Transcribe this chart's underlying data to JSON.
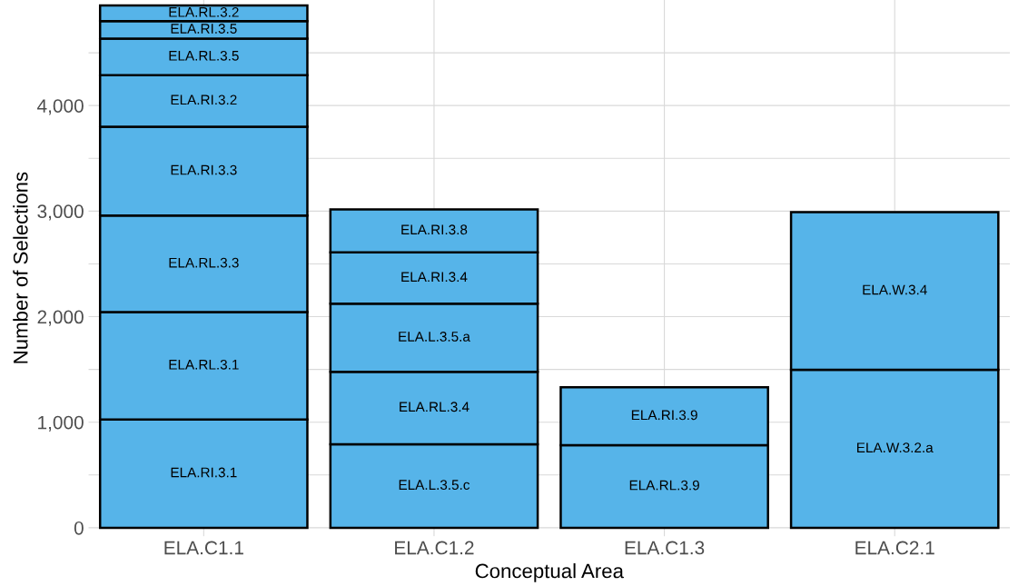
{
  "chart_data": {
    "type": "bar",
    "stacked": true,
    "xlabel": "Conceptual Area",
    "ylabel": "Number of Selections",
    "categories": [
      "ELA.C1.1",
      "ELA.C1.2",
      "ELA.C1.3",
      "ELA.C2.1"
    ],
    "ylim": [
      -80,
      5000
    ],
    "yticks": [
      0,
      {
        "value": 500,
        "label": null
      },
      {
        "value": 1000,
        "label": "1,000"
      },
      {
        "value": 1500,
        "label": null
      },
      {
        "value": 2000,
        "label": "2,000"
      },
      {
        "value": 2500,
        "label": null
      },
      {
        "value": 3000,
        "label": "3,000"
      },
      {
        "value": 3500,
        "label": null
      },
      {
        "value": 4000,
        "label": "4,000"
      },
      {
        "value": 4500,
        "label": null
      }
    ],
    "grid": true,
    "legend": false,
    "series": [
      {
        "name": "ELA.RI.3.1",
        "color": "#56b4e9",
        "values": [
          1026,
          null,
          null,
          null
        ]
      },
      {
        "name": "ELA.RL.3.1",
        "color": "#56b4e9",
        "values": [
          1017,
          null,
          null,
          null
        ]
      },
      {
        "name": "ELA.RL.3.3",
        "color": "#56b4e9",
        "values": [
          914,
          null,
          null,
          null
        ]
      },
      {
        "name": "ELA.RI.3.3",
        "color": "#56b4e9",
        "values": [
          843,
          null,
          null,
          null
        ]
      },
      {
        "name": "ELA.RI.3.2",
        "color": "#56b4e9",
        "values": [
          487,
          null,
          null,
          null
        ]
      },
      {
        "name": "ELA.RL.3.5",
        "color": "#56b4e9",
        "values": [
          348,
          null,
          null,
          null
        ]
      },
      {
        "name": "ELA.RI.3.5",
        "color": "#56b4e9",
        "values": [
          165,
          null,
          null,
          null
        ]
      },
      {
        "name": "ELA.RL.3.2",
        "color": "#56b4e9",
        "values": [
          148,
          null,
          null,
          null
        ]
      },
      {
        "name": "ELA.L.3.5.c",
        "color": "#56b4e9",
        "values": [
          null,
          791,
          null,
          null
        ]
      },
      {
        "name": "ELA.RL.3.4",
        "color": "#56b4e9",
        "values": [
          null,
          687,
          null,
          null
        ]
      },
      {
        "name": "ELA.L.3.5.a",
        "color": "#56b4e9",
        "values": [
          null,
          644,
          null,
          null
        ]
      },
      {
        "name": "ELA.RI.3.4",
        "color": "#56b4e9",
        "values": [
          null,
          487,
          null,
          null
        ]
      },
      {
        "name": "ELA.RI.3.8",
        "color": "#56b4e9",
        "values": [
          null,
          408,
          null,
          null
        ]
      },
      {
        "name": "ELA.RL.3.9",
        "color": "#56b4e9",
        "values": [
          null,
          null,
          783,
          null
        ]
      },
      {
        "name": "ELA.RI.3.9",
        "color": "#56b4e9",
        "values": [
          null,
          null,
          547,
          null
        ]
      },
      {
        "name": "ELA.W.3.2.a",
        "color": "#56b4e9",
        "values": [
          null,
          null,
          null,
          1496
        ]
      },
      {
        "name": "ELA.W.3.4",
        "color": "#56b4e9",
        "values": [
          null,
          null,
          null,
          1495
        ]
      }
    ]
  }
}
